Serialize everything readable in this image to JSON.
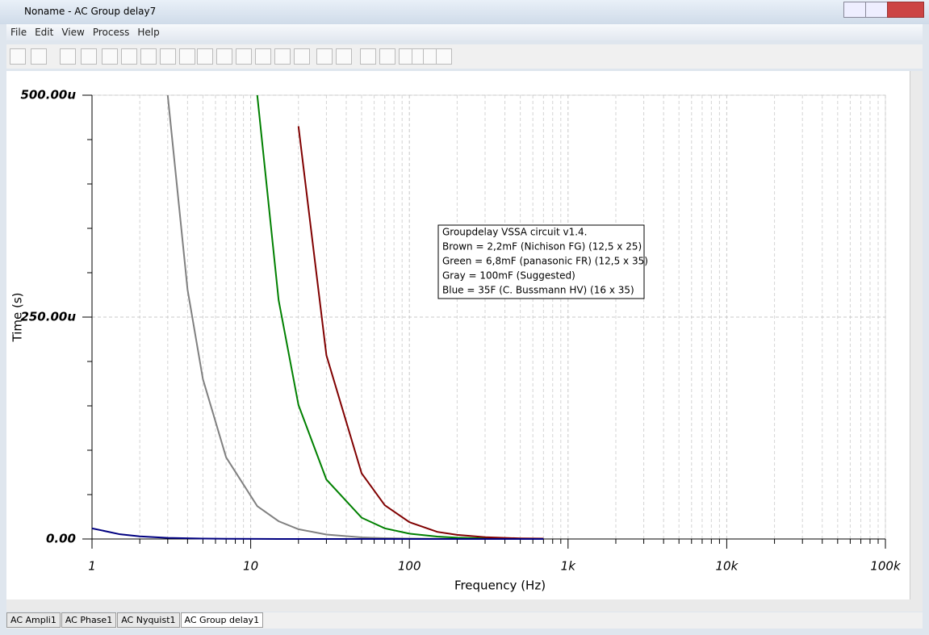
{
  "window": {
    "title": "Noname - AC Group delay7",
    "menu": [
      "File",
      "Edit",
      "View",
      "Process",
      "Help"
    ],
    "tabs": [
      "AC Ampli1",
      "AC Phase1",
      "AC Nyquist1",
      "AC Group delay1"
    ]
  },
  "chart_data": {
    "type": "line",
    "x_label": "Frequency (Hz)",
    "y_label": "Time (s)",
    "annotation": [
      "Groupdelay VSSA circuit v1.4.",
      "Brown = 2,2mF (Nichison FG) (12,5 x 25)",
      "Green = 6,8mF (panasonic FR) (12,5 x 35)",
      "Gray = 100mF (Suggested)",
      "Blue = 35F (C. Bussmann HV) (16 x 35)"
    ],
    "x_log": true,
    "xlim": [
      1,
      100000
    ],
    "xticks": [
      1,
      10,
      100,
      {
        "value": 1000,
        "label": "1k"
      },
      {
        "value": 10000,
        "label": "10k"
      },
      {
        "value": 100000,
        "label": "100k"
      }
    ],
    "xminor_ticks": [
      2,
      3,
      4,
      5,
      6,
      7,
      8,
      9,
      20,
      30,
      40,
      50,
      60,
      70,
      80,
      90,
      200,
      300,
      400,
      500,
      600,
      700,
      800,
      900,
      2000,
      3000,
      4000,
      5000,
      6000,
      7000,
      8000,
      9000,
      20000,
      30000,
      40000,
      50000,
      60000,
      70000,
      80000,
      90000
    ],
    "ylim": [
      0,
      0.0005
    ],
    "yticks": [
      {
        "value": 0,
        "label": "0.00"
      },
      {
        "value": 0.00025,
        "label": "250.00u"
      },
      {
        "value": 0.0005,
        "label": "500.00u"
      }
    ],
    "yminor_ticks": [
      5e-05,
      0.0001,
      0.00015,
      0.0002,
      0.0003,
      0.00035,
      0.0004,
      0.00045
    ],
    "grid": true,
    "x": [
      1,
      1.5,
      2,
      3,
      4,
      5,
      7,
      11,
      15,
      20,
      30,
      50,
      70,
      100,
      150,
      200,
      300,
      500,
      700
    ],
    "series": [
      {
        "color": "#808080",
        "values": [
          null,
          null,
          null,
          0.0005,
          0.000281,
          0.00018,
          9.2e-05,
          3.7e-05,
          2e-05,
          1.1e-05,
          5e-06,
          1.8e-06,
          9e-07,
          4.5e-07,
          2e-07,
          1e-07,
          5e-08,
          2e-08,
          1e-08
        ]
      },
      {
        "color": "#008000",
        "values": [
          null,
          null,
          null,
          null,
          null,
          null,
          null,
          0.0005,
          0.000269,
          0.000151,
          6.7e-05,
          2.4e-05,
          1.2e-05,
          6e-06,
          2.7e-06,
          1.5e-06,
          7e-07,
          2.4e-07,
          1.2e-07
        ]
      },
      {
        "color": "#800000",
        "values": [
          null,
          null,
          null,
          null,
          null,
          null,
          null,
          null,
          null,
          0.000465,
          0.000207,
          7.4e-05,
          3.8e-05,
          1.9e-05,
          8e-06,
          4.7e-06,
          2e-06,
          7e-07,
          4e-07
        ]
      },
      {
        "color": "#000080",
        "values": [
          1.2e-05,
          5.3e-06,
          3e-06,
          1.3e-06,
          7.5e-07,
          5e-07,
          2.4e-07,
          1e-07,
          5e-08,
          3e-08,
          1e-08,
          1e-08,
          1e-08,
          1e-08,
          1e-08,
          1e-08,
          1e-08,
          1e-08,
          1e-08
        ]
      }
    ]
  }
}
